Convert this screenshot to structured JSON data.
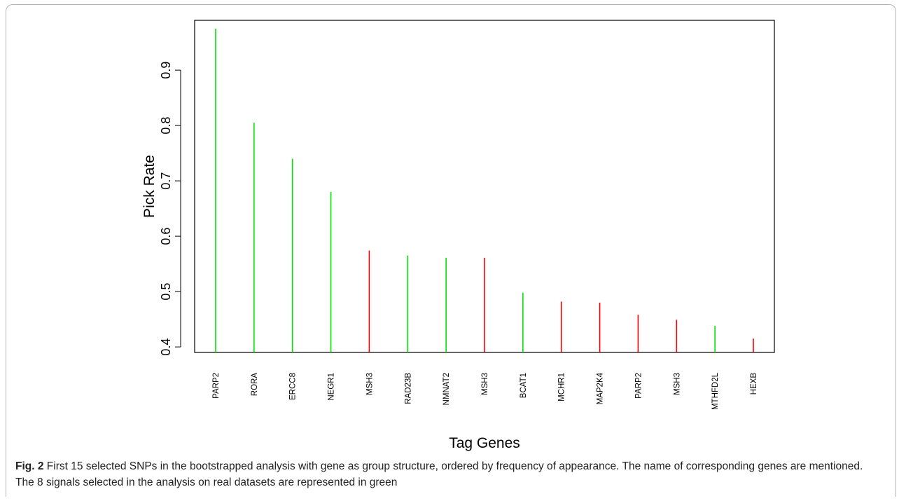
{
  "chart_data": {
    "type": "bar",
    "categories": [
      "PARP2",
      "RORA",
      "ERCC8",
      "NEGR1",
      "MSH3",
      "RAD23B",
      "NMNAT2",
      "MSH3",
      "BCAT1",
      "MCHR1",
      "MAP2K4",
      "PARP2",
      "MSH3",
      "MTHFD2L",
      "HEXB"
    ],
    "values": [
      0.975,
      0.805,
      0.74,
      0.68,
      0.574,
      0.565,
      0.561,
      0.561,
      0.498,
      0.482,
      0.48,
      0.458,
      0.449,
      0.438,
      0.415
    ],
    "bar_colors": [
      "#00e600",
      "#00e600",
      "#00e600",
      "#00e600",
      "#ff0000",
      "#00e600",
      "#00e600",
      "#ff0000",
      "#00e600",
      "#ff0000",
      "#ff0000",
      "#ff0000",
      "#ff0000",
      "#00e600",
      "#ff0000"
    ],
    "xlabel": "Tag Genes",
    "ylabel": "Pick Rate",
    "ylim": [
      0.39,
      0.99
    ],
    "yticks": [
      "0.4",
      "0.5",
      "0.6",
      "0.7",
      "0.8",
      "0.9"
    ],
    "grid": false
  },
  "caption": {
    "label": "Fig. 2",
    "text": " First 15 selected SNPs in the bootstrapped analysis with gene as group structure, ordered by frequency of appearance. The name of corresponding genes are mentioned. The 8 signals selected in the analysis on real datasets are represented in green"
  }
}
